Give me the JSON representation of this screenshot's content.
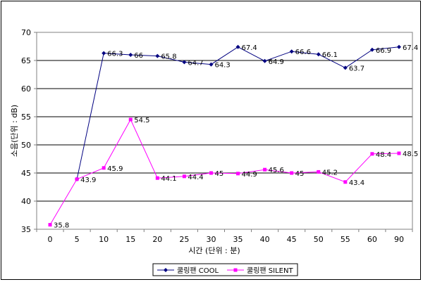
{
  "chart_data": {
    "type": "line",
    "title": "",
    "xlabel": "시간 (단위 : 분)",
    "ylabel": "소음(단위 : dB)",
    "categories": [
      "0",
      "5",
      "10",
      "15",
      "20",
      "25",
      "30",
      "35",
      "40",
      "45",
      "50",
      "55",
      "60",
      "90"
    ],
    "ylim": [
      35,
      70
    ],
    "yticks": [
      "35",
      "40",
      "45",
      "50",
      "55",
      "60",
      "65",
      "70"
    ],
    "grid": "horizontal",
    "legend_position": "bottom",
    "series": [
      {
        "name": "쿨링팬 COOL",
        "color": "#000080",
        "marker": "diamond",
        "values": [
          null,
          43.9,
          66.3,
          66,
          65.8,
          64.7,
          64.3,
          67.4,
          64.9,
          66.6,
          66.1,
          63.7,
          66.9,
          67.4
        ],
        "labels": [
          "",
          "",
          "66.3",
          "66",
          "65.8",
          "64.7",
          "64.3",
          "67.4",
          "64.9",
          "66.6",
          "66.1",
          "63.7",
          "66.9",
          "67.4"
        ]
      },
      {
        "name": "쿨링팬 SILENT",
        "color": "#ff00ff",
        "marker": "square",
        "values": [
          35.8,
          43.9,
          45.9,
          54.5,
          44.1,
          44.4,
          45,
          44.9,
          45.6,
          45,
          45.2,
          43.4,
          48.4,
          48.5
        ],
        "labels": [
          "35.8",
          "43.9",
          "45.9",
          "54.5",
          "44.1",
          "44.4",
          "45",
          "44.9",
          "45.6",
          "45",
          "45.2",
          "43.4",
          "48.4",
          "48.5"
        ]
      }
    ]
  }
}
